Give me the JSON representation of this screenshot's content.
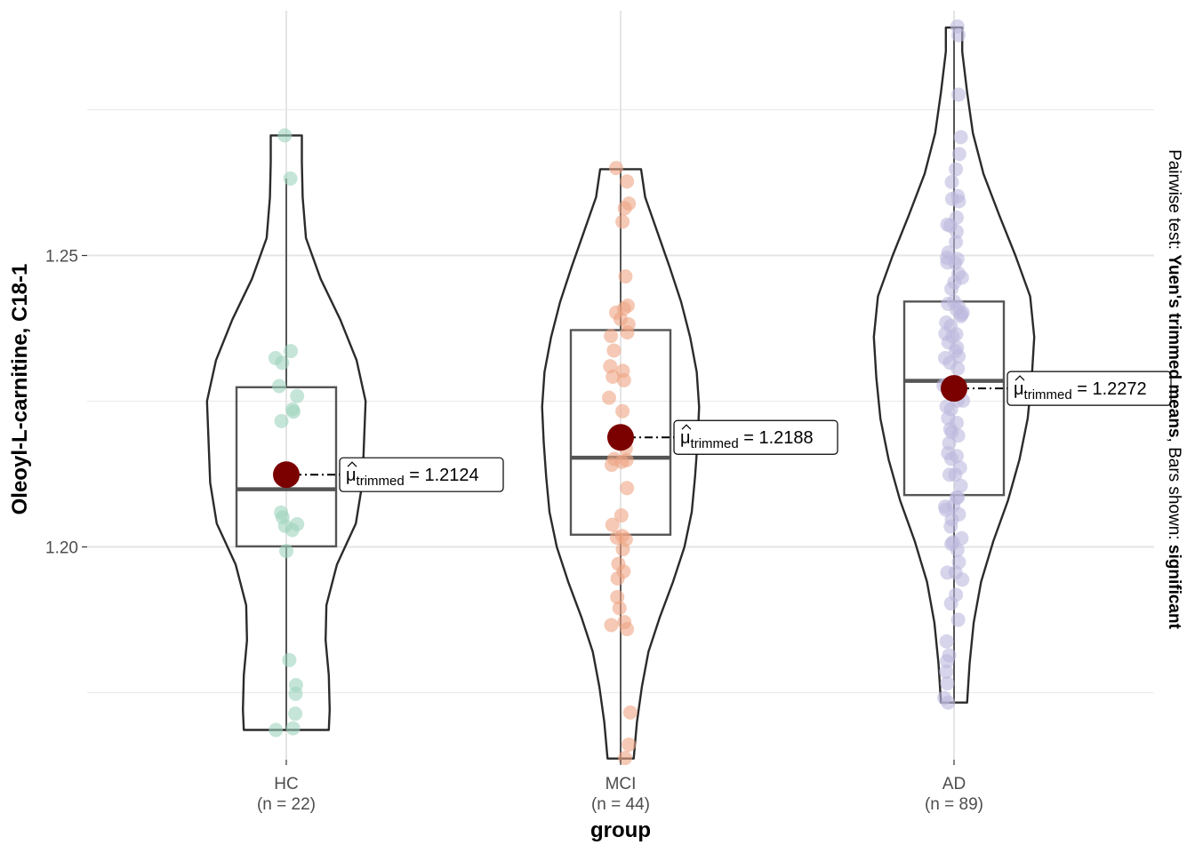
{
  "chart_data": {
    "type": "violin",
    "xlabel": "group",
    "ylabel": "Oleoyl-L-carnitine, C18-1",
    "ylim": [
      1.1635,
      1.292
    ],
    "y_ticks": [
      {
        "value": 1.2,
        "label": "1.20"
      },
      {
        "value": 1.25,
        "label": "1.25"
      }
    ],
    "y_minor_gridlines": [
      1.175,
      1.225,
      1.275
    ],
    "grid": true,
    "caption": {
      "prefix": "Pairwise test: ",
      "test": "Yuen's trimmed means",
      "middle": ", Bars shown: ",
      "shown": "significant"
    },
    "trimmed_label": {
      "mu": "μ",
      "subscript": "trimmed",
      "eq": " = "
    },
    "groups": [
      {
        "name": "HC",
        "n_label": "(n = 22)",
        "color": "#9fd4be",
        "trimmed_mean": 1.2124,
        "trimmed_mean_label": "1.2124",
        "box": {
          "q1": 1.2001,
          "median": 1.2099,
          "q3": 1.2274,
          "whisker_low": 1.1686,
          "whisker_high": 1.2632
        },
        "violin": [
          [
            1.1686,
            0.52
          ],
          [
            1.172,
            0.53
          ],
          [
            1.178,
            0.52
          ],
          [
            1.184,
            0.48
          ],
          [
            1.19,
            0.49
          ],
          [
            1.197,
            0.62
          ],
          [
            1.204,
            0.85
          ],
          [
            1.211,
            0.93
          ],
          [
            1.218,
            0.95
          ],
          [
            1.225,
            0.97
          ],
          [
            1.232,
            0.86
          ],
          [
            1.239,
            0.66
          ],
          [
            1.246,
            0.42
          ],
          [
            1.253,
            0.24
          ],
          [
            1.26,
            0.2
          ],
          [
            1.266,
            0.19
          ],
          [
            1.2706,
            0.19
          ]
        ],
        "points": [
          [
            1.2706,
            -0.04
          ],
          [
            1.2632,
            0.11
          ],
          [
            1.2336,
            0.12
          ],
          [
            1.2324,
            -0.29
          ],
          [
            1.2316,
            -0.11
          ],
          [
            1.2276,
            -0.19
          ],
          [
            1.2259,
            0.29
          ],
          [
            1.2236,
            0.17
          ],
          [
            1.2232,
            0.19
          ],
          [
            1.2216,
            -0.13
          ],
          [
            1.2059,
            -0.14
          ],
          [
            1.2051,
            -0.1
          ],
          [
            1.2036,
            -0.03
          ],
          [
            1.2039,
            0.29
          ],
          [
            1.2029,
            0.16
          ],
          [
            1.1993,
            0.0
          ],
          [
            1.1806,
            0.08
          ],
          [
            1.1763,
            0.26
          ],
          [
            1.1748,
            0.25
          ],
          [
            1.1714,
            0.24
          ],
          [
            1.1689,
            0.18
          ],
          [
            1.1686,
            -0.28
          ]
        ]
      },
      {
        "name": "MCI",
        "n_label": "(n = 44)",
        "color": "#eea584",
        "trimmed_mean": 1.2188,
        "trimmed_mean_label": "1.2188",
        "box": {
          "q1": 1.2021,
          "median": 1.2153,
          "q3": 1.2372,
          "whisker_low": 1.1637,
          "whisker_high": 1.2648
        },
        "violin": [
          [
            1.1637,
            0.16
          ],
          [
            1.17,
            0.2
          ],
          [
            1.176,
            0.26
          ],
          [
            1.182,
            0.34
          ],
          [
            1.188,
            0.48
          ],
          [
            1.194,
            0.64
          ],
          [
            1.2,
            0.78
          ],
          [
            1.206,
            0.87
          ],
          [
            1.212,
            0.91
          ],
          [
            1.218,
            0.94
          ],
          [
            1.224,
            0.96
          ],
          [
            1.23,
            0.93
          ],
          [
            1.236,
            0.85
          ],
          [
            1.242,
            0.74
          ],
          [
            1.248,
            0.6
          ],
          [
            1.254,
            0.45
          ],
          [
            1.26,
            0.3
          ],
          [
            1.2648,
            0.25
          ]
        ],
        "points": [
          [
            1.265,
            -0.12
          ],
          [
            1.2627,
            0.17
          ],
          [
            1.2589,
            0.22
          ],
          [
            1.2581,
            0.11
          ],
          [
            1.2558,
            0.05
          ],
          [
            1.2464,
            0.13
          ],
          [
            1.2414,
            0.19
          ],
          [
            1.2409,
            0.09
          ],
          [
            1.2402,
            -0.12
          ],
          [
            1.2391,
            0.0
          ],
          [
            1.2382,
            0.21
          ],
          [
            1.2368,
            0.18
          ],
          [
            1.2362,
            -0.26
          ],
          [
            1.2337,
            -0.18
          ],
          [
            1.231,
            -0.28
          ],
          [
            1.2302,
            0.06
          ],
          [
            1.2292,
            -0.21
          ],
          [
            1.2286,
            0.09
          ],
          [
            1.2256,
            -0.31
          ],
          [
            1.2169,
            0.14
          ],
          [
            1.2151,
            -0.17
          ],
          [
            1.2149,
            0.16
          ],
          [
            1.2146,
            0.03
          ],
          [
            1.2141,
            -0.24
          ],
          [
            1.2101,
            0.17
          ],
          [
            1.2054,
            0.02
          ],
          [
            1.2038,
            -0.22
          ],
          [
            1.2016,
            -0.1
          ],
          [
            1.2019,
            0.04
          ],
          [
            1.2013,
            0.14
          ],
          [
            1.1996,
            0.06
          ],
          [
            1.1971,
            -0.06
          ],
          [
            1.1946,
            -0.08
          ],
          [
            1.1914,
            -0.09
          ],
          [
            1.1871,
            0.1
          ],
          [
            1.1866,
            -0.25
          ],
          [
            1.1859,
            0.17
          ],
          [
            1.1716,
            0.26
          ],
          [
            1.1661,
            0.22
          ],
          [
            1.1638,
            0.12
          ],
          [
            1.1895,
            -0.03
          ],
          [
            1.1958,
            0.08
          ],
          [
            1.2233,
            0.05
          ],
          [
            1.2198,
            -0.04
          ]
        ]
      },
      {
        "name": "AD",
        "n_label": "(n = 89)",
        "color": "#bdb9de",
        "trimmed_mean": 1.2272,
        "trimmed_mean_label": "1.2272",
        "box": {
          "q1": 1.2089,
          "median": 1.2285,
          "q3": 1.2421,
          "whisker_low": 1.1733,
          "whisker_high": 1.2891
        },
        "violin": [
          [
            1.1733,
            0.16
          ],
          [
            1.18,
            0.19
          ],
          [
            1.187,
            0.24
          ],
          [
            1.194,
            0.33
          ],
          [
            1.201,
            0.48
          ],
          [
            1.208,
            0.66
          ],
          [
            1.215,
            0.8
          ],
          [
            1.222,
            0.9
          ],
          [
            1.229,
            0.95
          ],
          [
            1.236,
            0.98
          ],
          [
            1.243,
            0.93
          ],
          [
            1.25,
            0.75
          ],
          [
            1.257,
            0.55
          ],
          [
            1.264,
            0.36
          ],
          [
            1.271,
            0.23
          ],
          [
            1.278,
            0.16
          ],
          [
            1.285,
            0.1
          ],
          [
            1.2891,
            0.1
          ]
        ],
        "points": [
          [
            1.2893,
            0.09
          ],
          [
            1.2878,
            0.12
          ],
          [
            1.2776,
            0.12
          ],
          [
            1.2703,
            0.18
          ],
          [
            1.2674,
            0.14
          ],
          [
            1.2626,
            -0.06
          ],
          [
            1.2602,
            0.1
          ],
          [
            1.2597,
            -0.05
          ],
          [
            1.2593,
            0.13
          ],
          [
            1.2553,
            -0.18
          ],
          [
            1.2551,
            -0.1
          ],
          [
            1.2541,
            0.07
          ],
          [
            1.2505,
            -0.15
          ],
          [
            1.2496,
            -0.19
          ],
          [
            1.2494,
            0.09
          ],
          [
            1.2488,
            -0.18
          ],
          [
            1.2469,
            0.12
          ],
          [
            1.2462,
            0.21
          ],
          [
            1.2421,
            0.0
          ],
          [
            1.2417,
            -0.16
          ],
          [
            1.2412,
            0.12
          ],
          [
            1.2407,
            0.07
          ],
          [
            1.2402,
            0.23
          ],
          [
            1.2399,
            0.2
          ],
          [
            1.2396,
            0.18
          ],
          [
            1.2385,
            -0.21
          ],
          [
            1.2379,
            -0.09
          ],
          [
            1.2366,
            -0.23
          ],
          [
            1.2361,
            -0.04
          ],
          [
            1.2351,
            -0.15
          ],
          [
            1.2336,
            0.04
          ],
          [
            1.2324,
            -0.24
          ],
          [
            1.2316,
            -0.11
          ],
          [
            1.2306,
            0.1
          ],
          [
            1.2279,
            -0.19
          ],
          [
            1.2277,
            -0.28
          ],
          [
            1.2251,
            0.24
          ],
          [
            1.2251,
            0.09
          ],
          [
            1.2241,
            -0.2
          ],
          [
            1.2236,
            -0.08
          ],
          [
            1.2221,
            -0.16
          ],
          [
            1.2213,
            0.07
          ],
          [
            1.2161,
            -0.16
          ],
          [
            1.2151,
            -0.07
          ],
          [
            1.2156,
            0.07
          ],
          [
            1.2136,
            0.16
          ],
          [
            1.2124,
            0.03
          ],
          [
            1.2124,
            -0.12
          ],
          [
            1.2105,
            0.18
          ],
          [
            1.2085,
            0.1
          ],
          [
            1.2071,
            -0.02
          ],
          [
            1.2056,
            0.13
          ],
          [
            1.2069,
            -0.24
          ],
          [
            1.2064,
            -0.22
          ],
          [
            1.2047,
            -0.06
          ],
          [
            1.2015,
            0.2
          ],
          [
            1.2005,
            -0.07
          ],
          [
            1.2008,
            -0.03
          ],
          [
            1.1995,
            0.09
          ],
          [
            1.1974,
            0.13
          ],
          [
            1.1956,
            -0.18
          ],
          [
            1.1944,
            0.22
          ],
          [
            1.1918,
            0.05
          ],
          [
            1.1875,
            0.11
          ],
          [
            1.1838,
            -0.2
          ],
          [
            1.1804,
            -0.19
          ],
          [
            1.1786,
            -0.21
          ],
          [
            1.1766,
            -0.18
          ],
          [
            1.1741,
            -0.26
          ],
          [
            1.1733,
            -0.16
          ],
          [
            1.1814,
            -0.13
          ],
          [
            1.1903,
            -0.08
          ],
          [
            1.2178,
            -0.13
          ],
          [
            1.2191,
            0.11
          ],
          [
            1.2202,
            -0.1
          ],
          [
            1.2327,
            0.12
          ],
          [
            1.2342,
            0.08
          ],
          [
            1.2454,
            0.01
          ],
          [
            1.2487,
            0.03
          ],
          [
            1.2523,
            0.05
          ],
          [
            1.2565,
            0.07
          ],
          [
            1.2648,
            0.05
          ],
          [
            1.2365,
            0.06
          ],
          [
            1.2197,
            -0.06
          ],
          [
            1.2085,
            0.07
          ],
          [
            1.2035,
            -0.09
          ],
          [
            1.1956,
            0.04
          ],
          [
            1.2266,
            0.02
          ],
          [
            1.2443,
            -0.07
          ]
        ]
      }
    ]
  }
}
